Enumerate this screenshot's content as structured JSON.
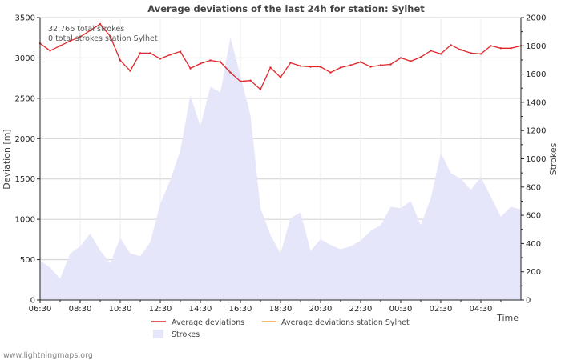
{
  "chart_data": {
    "type": "line",
    "title": "Average deviations of the last 24h for station: Sylhet",
    "ylabel_left": "Deviation  [m]",
    "ylabel_right": "Strokes",
    "xlabel": "Time",
    "y_left_lim": [
      0,
      3500
    ],
    "y_right_lim": [
      0,
      2000
    ],
    "y_left_ticks": [
      0,
      500,
      1000,
      1500,
      2000,
      2500,
      3000,
      3500
    ],
    "y_right_ticks": [
      0,
      200,
      400,
      600,
      800,
      1000,
      1200,
      1400,
      1600,
      1800,
      2000
    ],
    "x_tick_labels": [
      "06:30",
      "08:30",
      "10:30",
      "12:30",
      "14:30",
      "16:30",
      "18:30",
      "20:30",
      "22:30",
      "00:30",
      "02:30",
      "04:30"
    ],
    "x_count": 49,
    "annotations": [
      "32.766 total strokes",
      "0 total strokes station Sylhet"
    ],
    "legend": {
      "avg": "Average deviations",
      "station": "Average deviations station Sylhet",
      "strokes": "Strokes"
    },
    "series": [
      {
        "name": "Average deviations",
        "axis": "left",
        "color": "#e0262b",
        "values": [
          3180,
          3090,
          3150,
          3210,
          3260,
          3340,
          3420,
          3270,
          2970,
          2840,
          3060,
          3060,
          2990,
          3040,
          3080,
          2870,
          2930,
          2970,
          2950,
          2820,
          2710,
          2720,
          2610,
          2880,
          2760,
          2940,
          2900,
          2890,
          2890,
          2820,
          2880,
          2910,
          2950,
          2890,
          2910,
          2920,
          3000,
          2960,
          3010,
          3090,
          3050,
          3160,
          3100,
          3060,
          3050,
          3150,
          3120,
          3120,
          3150
        ]
      },
      {
        "name": "Average deviations station Sylhet",
        "axis": "left",
        "color": "#f0a040",
        "values": []
      },
      {
        "name": "Strokes",
        "axis": "right",
        "type": "area",
        "color": "#e6e6fa",
        "values": [
          280,
          230,
          150,
          330,
          380,
          470,
          350,
          260,
          440,
          330,
          310,
          410,
          680,
          850,
          1060,
          1450,
          1230,
          1510,
          1470,
          1860,
          1590,
          1310,
          650,
          460,
          330,
          580,
          620,
          350,
          430,
          390,
          360,
          380,
          420,
          490,
          530,
          660,
          650,
          700,
          530,
          720,
          1040,
          900,
          860,
          780,
          870,
          730,
          590,
          660,
          640
        ]
      }
    ]
  },
  "footer": {
    "credit": "www.lightningmaps.org"
  }
}
